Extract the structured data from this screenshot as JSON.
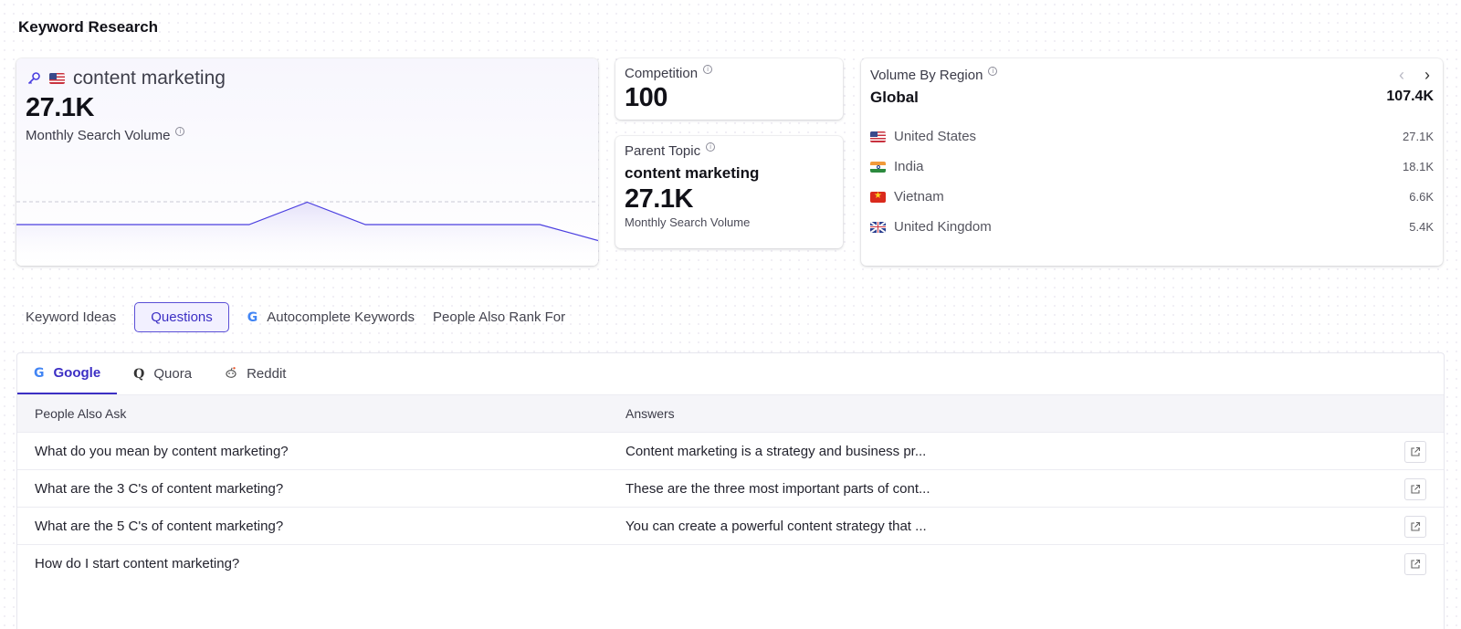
{
  "page": {
    "title": "Keyword Research"
  },
  "keyword": {
    "text": "content marketing",
    "volume": "27.1K",
    "volume_label": "Monthly Search Volume",
    "trend": [
      0.0,
      0.0,
      0.0,
      0.0,
      0.0,
      0.7,
      0.0,
      0.0,
      0.0,
      0.0,
      -0.5
    ]
  },
  "competition": {
    "label": "Competition",
    "value": "100"
  },
  "parent_topic": {
    "label": "Parent Topic",
    "keyword": "content marketing",
    "volume": "27.1K",
    "volume_label": "Monthly Search Volume"
  },
  "region": {
    "label": "Volume By Region",
    "global_name": "Global",
    "global_value": "107.4K",
    "rows": [
      {
        "country": "United States",
        "value": "27.1K",
        "flag": "us"
      },
      {
        "country": "India",
        "value": "18.1K",
        "flag": "in"
      },
      {
        "country": "Vietnam",
        "value": "6.6K",
        "flag": "vn"
      },
      {
        "country": "United Kingdom",
        "value": "5.4K",
        "flag": "uk"
      }
    ]
  },
  "main_tabs": [
    {
      "label": "Keyword Ideas",
      "active": false
    },
    {
      "label": "Questions",
      "active": true
    },
    {
      "label": "Autocomplete Keywords",
      "active": false
    },
    {
      "label": "People Also Rank For",
      "active": false
    }
  ],
  "source_tabs": [
    {
      "label": "Google",
      "icon": "google-icon",
      "active": true
    },
    {
      "label": "Quora",
      "icon": "quora-icon",
      "active": false
    },
    {
      "label": "Reddit",
      "icon": "reddit-icon",
      "active": false
    }
  ],
  "table": {
    "columns": [
      "People Also Ask",
      "Answers"
    ],
    "rows": [
      {
        "question": "What do you mean by content marketing?",
        "answer": "Content marketing is a strategy and business pr..."
      },
      {
        "question": "What are the 3 C's of content marketing?",
        "answer": "These are the three most important parts of cont..."
      },
      {
        "question": "What are the 5 C's of content marketing?",
        "answer": "You can create a powerful content strategy that ..."
      },
      {
        "question": "How do I start content marketing?",
        "answer": ""
      }
    ]
  },
  "colors": {
    "accent": "#3c2fc4",
    "chart_line": "#4b3fe0"
  }
}
